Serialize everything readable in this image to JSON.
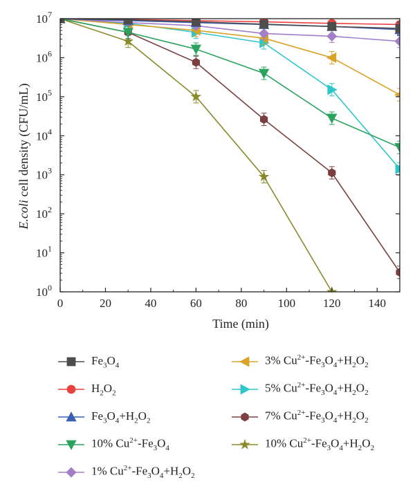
{
  "chart_data": {
    "type": "line",
    "xlabel": "Time (min)",
    "ylabel_italic": "E.coli",
    "ylabel_rest": " cell density (CFU/mL)",
    "xlim": [
      0,
      150
    ],
    "ylim": [
      0,
      7
    ],
    "y_scale": "log10",
    "x_ticks": [
      0,
      20,
      40,
      60,
      80,
      100,
      120,
      140
    ],
    "x_tick_labels": [
      "0",
      "20",
      "40",
      "60",
      "80",
      "100",
      "120",
      "140"
    ],
    "y_ticks": [
      0,
      1,
      2,
      3,
      4,
      5,
      6,
      7
    ],
    "y_tick_base": "10",
    "y_tick_exponents": [
      "0",
      "1",
      "2",
      "3",
      "4",
      "5",
      "6",
      "7"
    ],
    "x": [
      0,
      30,
      60,
      90,
      120,
      150
    ],
    "series": [
      {
        "name": "Fe3O4",
        "legend_parts": [
          [
            "Fe",
            ""
          ],
          [
            "3",
            "sub"
          ],
          [
            "O",
            ""
          ],
          [
            "4",
            "sub"
          ]
        ],
        "color": "#4d4d4d",
        "marker": "square",
        "values": [
          7.0,
          6.97,
          6.92,
          6.86,
          6.8,
          6.75
        ]
      },
      {
        "name": "H2O2",
        "legend_parts": [
          [
            "H",
            ""
          ],
          [
            "2",
            "sub"
          ],
          [
            "O",
            ""
          ],
          [
            "2",
            "sub"
          ]
        ],
        "color": "#e8423f",
        "marker": "circle",
        "values": [
          7.0,
          6.98,
          6.95,
          6.92,
          6.88,
          6.85
        ]
      },
      {
        "name": "Fe3O4+H2O2",
        "legend_parts": [
          [
            "Fe",
            ""
          ],
          [
            "3",
            "sub"
          ],
          [
            "O",
            ""
          ],
          [
            "4",
            "sub"
          ],
          [
            "+H",
            ""
          ],
          [
            "2",
            "sub"
          ],
          [
            "O",
            ""
          ],
          [
            "2",
            "sub"
          ]
        ],
        "color": "#3a5fb5",
        "marker": "triangle-up",
        "values": [
          7.0,
          6.95,
          6.9,
          6.85,
          6.8,
          6.72
        ]
      },
      {
        "name": "10% Cu2+-Fe3O4",
        "legend_parts": [
          [
            "10% Cu",
            ""
          ],
          [
            "2+",
            "sup"
          ],
          [
            "-Fe",
            ""
          ],
          [
            "3",
            "sub"
          ],
          [
            "O",
            ""
          ],
          [
            "4",
            "sub"
          ]
        ],
        "color": "#2ba35f",
        "marker": "triangle-down",
        "values": [
          7.0,
          6.65,
          6.22,
          5.6,
          4.45,
          3.7
        ]
      },
      {
        "name": "1% Cu2+-Fe3O4+H2O2",
        "legend_parts": [
          [
            "1% Cu",
            ""
          ],
          [
            "2+",
            "sup"
          ],
          [
            "-Fe",
            ""
          ],
          [
            "3",
            "sub"
          ],
          [
            "O",
            ""
          ],
          [
            "4",
            "sub"
          ],
          [
            "+H",
            ""
          ],
          [
            "2",
            "sub"
          ],
          [
            "O",
            ""
          ],
          [
            "2",
            "sub"
          ]
        ],
        "color": "#a37ec9",
        "marker": "diamond",
        "values": [
          7.0,
          6.9,
          6.82,
          6.62,
          6.55,
          6.42
        ]
      },
      {
        "name": "3% Cu2+-Fe3O4+H2O2",
        "legend_parts": [
          [
            "3% Cu",
            ""
          ],
          [
            "2+",
            "sup"
          ],
          [
            "-Fe",
            ""
          ],
          [
            "3",
            "sub"
          ],
          [
            "O",
            ""
          ],
          [
            "4",
            "sub"
          ],
          [
            "+H",
            ""
          ],
          [
            "2",
            "sub"
          ],
          [
            "O",
            ""
          ],
          [
            "2",
            "sub"
          ]
        ],
        "color": "#d9a32a",
        "marker": "triangle-left",
        "values": [
          7.0,
          6.85,
          6.7,
          6.5,
          6.0,
          5.05
        ]
      },
      {
        "name": "5% Cu2+-Fe3O4+H2O2",
        "legend_parts": [
          [
            "5% Cu",
            ""
          ],
          [
            "2+",
            "sup"
          ],
          [
            "-Fe",
            ""
          ],
          [
            "3",
            "sub"
          ],
          [
            "O",
            ""
          ],
          [
            "4",
            "sub"
          ],
          [
            "+H",
            ""
          ],
          [
            "2",
            "sub"
          ],
          [
            "O",
            ""
          ],
          [
            "2",
            "sub"
          ]
        ],
        "color": "#2fc5cc",
        "marker": "triangle-right",
        "values": [
          7.0,
          6.88,
          6.65,
          6.38,
          5.18,
          3.15
        ]
      },
      {
        "name": "7% Cu2+-Fe3O4+H2O2",
        "legend_parts": [
          [
            "7% Cu",
            ""
          ],
          [
            "2+",
            "sup"
          ],
          [
            "-Fe",
            ""
          ],
          [
            "3",
            "sub"
          ],
          [
            "O",
            ""
          ],
          [
            "4",
            "sub"
          ],
          [
            "+H",
            ""
          ],
          [
            "2",
            "sub"
          ],
          [
            "O",
            ""
          ],
          [
            "2",
            "sub"
          ]
        ],
        "color": "#7b3f3f",
        "marker": "hexagon",
        "values": [
          7.0,
          6.65,
          5.88,
          4.42,
          3.05,
          0.5
        ]
      },
      {
        "name": "10% Cu2+-Fe3O4+H2O2",
        "legend_parts": [
          [
            "10% Cu",
            ""
          ],
          [
            "2+",
            "sup"
          ],
          [
            "-Fe",
            ""
          ],
          [
            "3",
            "sub"
          ],
          [
            "O",
            ""
          ],
          [
            "4",
            "sub"
          ],
          [
            "+H",
            ""
          ],
          [
            "2",
            "sub"
          ],
          [
            "O",
            ""
          ],
          [
            "2",
            "sub"
          ]
        ],
        "color": "#8a8a2a",
        "marker": "star",
        "values": [
          7.0,
          6.42,
          5.0,
          2.95,
          0.0,
          null
        ]
      }
    ]
  }
}
